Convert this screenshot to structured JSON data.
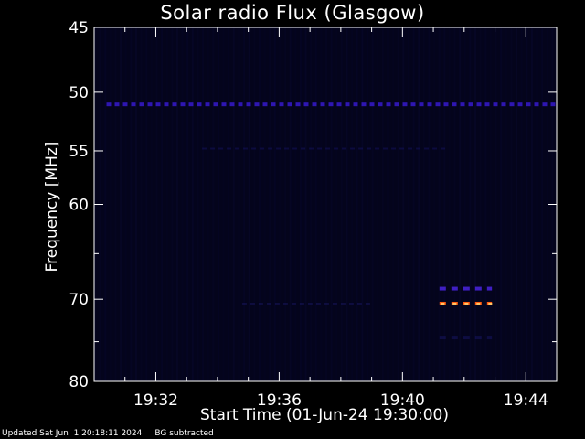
{
  "chart_data": {
    "type": "heatmap",
    "title": "Solar radio Flux (Glasgow)",
    "xlabel": "Start Time (01-Jun-24 19:30:00)",
    "ylabel": "Frequency [MHz]",
    "x_start": "19:30:00",
    "x_end": "19:45:00",
    "x_ticks": [
      "19:32",
      "19:36",
      "19:40",
      "19:44"
    ],
    "x_tick_minutes": [
      32,
      36,
      40,
      44
    ],
    "ylim": [
      45,
      80
    ],
    "y_scale": "log",
    "y_ticks": [
      45,
      50,
      55,
      60,
      70,
      80
    ],
    "y_minor_ticks": [
      65,
      75
    ],
    "background_color": "#04041c",
    "features": [
      {
        "name": "band",
        "freq_mhz": 51,
        "t_start_min": 30.4,
        "t_end_min": 45.0,
        "color": "#3a1cd8",
        "intensity": 0.8
      },
      {
        "name": "band",
        "freq_mhz": 54.8,
        "t_start_min": 33.5,
        "t_end_min": 41.5,
        "color": "#1a1670",
        "intensity": 0.35
      },
      {
        "name": "band",
        "freq_mhz": 70.5,
        "t_start_min": 34.8,
        "t_end_min": 39.0,
        "color": "#1e1c72",
        "intensity": 0.35
      },
      {
        "name": "burst",
        "freq_mhz": 68.8,
        "t_start_min": 41.2,
        "t_end_min": 42.9,
        "color": "#4a24e0",
        "intensity": 0.85
      },
      {
        "name": "burst",
        "freq_mhz": 70.5,
        "t_start_min": 41.2,
        "t_end_min": 42.9,
        "color": "#ff5a10",
        "intensity": 1.0
      },
      {
        "name": "burst",
        "freq_mhz": 74.5,
        "t_start_min": 41.2,
        "t_end_min": 42.9,
        "color": "#1e1c7a",
        "intensity": 0.4
      }
    ]
  },
  "footer": {
    "updated": "Updated Sat Jun  1 20:18:11 2024",
    "note": "BG subtracted"
  }
}
